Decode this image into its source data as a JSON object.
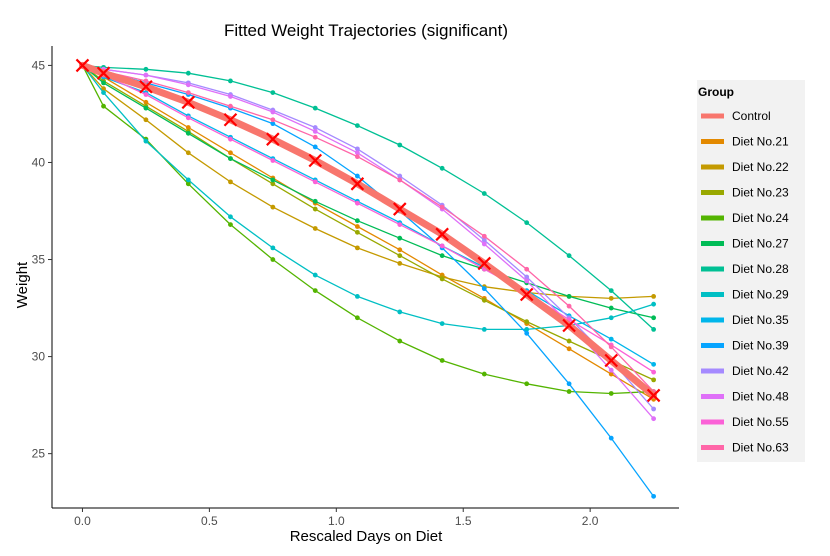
{
  "chart_data": {
    "type": "line",
    "title": "Fitted Weight Trajectories (significant)",
    "xlabel": "Rescaled Days on Diet",
    "ylabel": "Weight",
    "xlim": [
      -0.12,
      2.35
    ],
    "ylim": [
      22.2,
      46.0
    ],
    "xticks": [
      0.0,
      0.5,
      1.0,
      1.5,
      2.0
    ],
    "xtick_labels": [
      "0.0",
      "0.5",
      "1.0",
      "1.5",
      "2.0"
    ],
    "yticks": [
      25,
      30,
      35,
      40,
      45
    ],
    "ytick_labels": [
      "25",
      "30",
      "35",
      "40",
      "45"
    ],
    "grid": false,
    "legend_title": "Group",
    "legend_position": "right",
    "x": [
      0.0,
      0.083,
      0.25,
      0.417,
      0.583,
      0.75,
      0.917,
      1.083,
      1.25,
      1.417,
      1.583,
      1.75,
      1.917,
      2.083,
      2.25
    ],
    "series": [
      {
        "name": "Control",
        "color": "#F8766D",
        "marker": "x",
        "values": [
          45.0,
          44.6,
          43.9,
          43.1,
          42.2,
          41.2,
          40.1,
          38.9,
          37.6,
          36.3,
          34.8,
          33.2,
          31.6,
          29.8,
          28.0
        ]
      },
      {
        "name": "Diet No.21",
        "color": "#E38900",
        "values": [
          45.0,
          44.4,
          43.1,
          41.8,
          40.5,
          39.2,
          37.9,
          36.7,
          35.5,
          34.2,
          33.0,
          31.7,
          30.4,
          29.1,
          27.8
        ]
      },
      {
        "name": "Diet No.22",
        "color": "#C49A00",
        "values": [
          45.0,
          43.8,
          42.2,
          40.5,
          39.0,
          37.7,
          36.6,
          35.6,
          34.8,
          34.1,
          33.6,
          33.3,
          33.1,
          33.0,
          33.1
        ]
      },
      {
        "name": "Diet No.23",
        "color": "#99A800",
        "values": [
          45.0,
          44.2,
          42.9,
          41.6,
          40.2,
          38.9,
          37.6,
          36.4,
          35.2,
          34.0,
          32.9,
          31.8,
          30.8,
          29.8,
          28.8
        ]
      },
      {
        "name": "Diet No.24",
        "color": "#53B400",
        "values": [
          45.0,
          42.9,
          41.2,
          38.9,
          36.8,
          35.0,
          33.4,
          32.0,
          30.8,
          29.8,
          29.1,
          28.6,
          28.2,
          28.1,
          28.2
        ]
      },
      {
        "name": "Diet No.27",
        "color": "#00BC56",
        "values": [
          45.0,
          44.1,
          42.8,
          41.5,
          40.2,
          39.1,
          38.0,
          37.0,
          36.1,
          35.2,
          34.5,
          33.8,
          33.1,
          32.5,
          32.0
        ]
      },
      {
        "name": "Diet No.28",
        "color": "#00C094",
        "values": [
          45.0,
          44.9,
          44.8,
          44.6,
          44.2,
          43.6,
          42.8,
          41.9,
          40.9,
          39.7,
          38.4,
          36.9,
          35.2,
          33.4,
          31.4
        ]
      },
      {
        "name": "Diet No.29",
        "color": "#00BFC4",
        "values": [
          45.0,
          43.6,
          41.1,
          39.1,
          37.2,
          35.6,
          34.2,
          33.1,
          32.3,
          31.7,
          31.4,
          31.4,
          31.6,
          32.0,
          32.7
        ]
      },
      {
        "name": "Diet No.35",
        "color": "#00B6EB",
        "values": [
          45.0,
          44.4,
          43.6,
          42.4,
          41.3,
          40.2,
          39.1,
          38.0,
          36.9,
          35.7,
          34.6,
          33.4,
          32.1,
          30.9,
          29.6
        ]
      },
      {
        "name": "Diet No.39",
        "color": "#06A4FF",
        "values": [
          45.0,
          44.7,
          44.1,
          43.5,
          42.8,
          42.0,
          40.8,
          39.3,
          37.5,
          35.6,
          33.5,
          31.2,
          28.6,
          25.8,
          22.8
        ]
      },
      {
        "name": "Diet No.42",
        "color": "#A58AFF",
        "values": [
          45.0,
          44.8,
          44.5,
          44.1,
          43.5,
          42.7,
          41.8,
          40.7,
          39.3,
          37.8,
          36.0,
          34.1,
          32.0,
          29.8,
          27.3
        ]
      },
      {
        "name": "Diet No.48",
        "color": "#DF70F8",
        "values": [
          45.0,
          44.8,
          44.5,
          44.0,
          43.4,
          42.6,
          41.6,
          40.5,
          39.1,
          37.6,
          35.8,
          33.9,
          31.7,
          29.3,
          26.8
        ]
      },
      {
        "name": "Diet No.55",
        "color": "#FB61D7",
        "values": [
          45.0,
          44.5,
          43.5,
          42.3,
          41.2,
          40.1,
          39.0,
          37.9,
          36.8,
          35.7,
          34.5,
          33.3,
          31.9,
          30.6,
          29.2
        ]
      },
      {
        "name": "Diet No.63",
        "color": "#FF66A8",
        "values": [
          45.0,
          44.7,
          44.2,
          43.6,
          42.9,
          42.2,
          41.3,
          40.3,
          39.1,
          37.7,
          36.2,
          34.5,
          32.6,
          30.5,
          28.2
        ]
      }
    ]
  }
}
